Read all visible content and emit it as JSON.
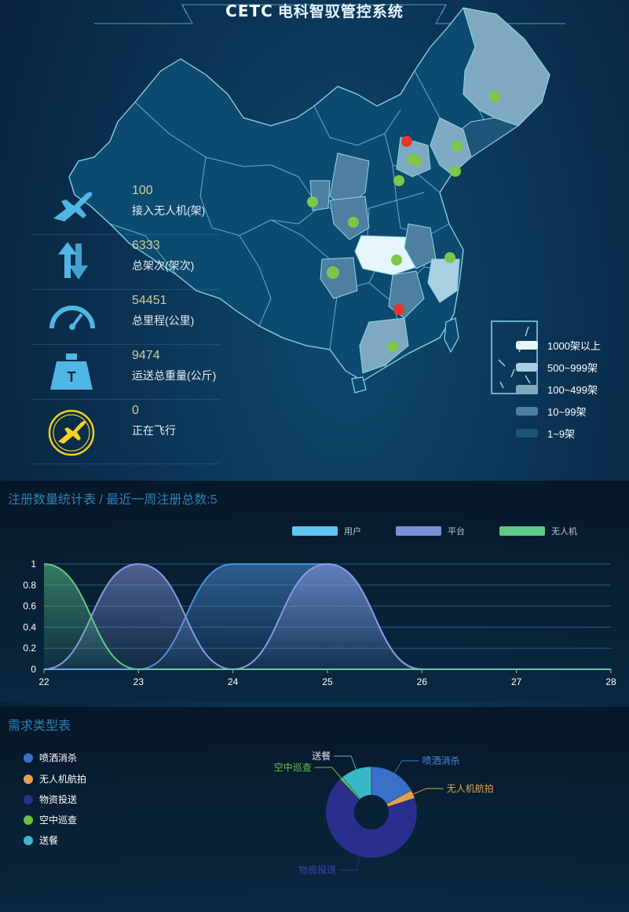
{
  "header": {
    "logo": "CETC",
    "title": "电科智驭管控系统"
  },
  "stats": [
    {
      "value": "100",
      "label": "接入无人机(架)",
      "icon": "drone-icon"
    },
    {
      "value": "6333",
      "label": "总架次(架次)",
      "icon": "transfer-arrows-icon"
    },
    {
      "value": "54451",
      "label": "总里程(公里)",
      "icon": "speedometer-icon"
    },
    {
      "value": "9474",
      "label": "运送总重量(公斤)",
      "icon": "weight-icon"
    },
    {
      "value": "0",
      "label": "正在飞行",
      "icon": "flying-drone-icon"
    }
  ],
  "map_legend": [
    {
      "label": "1000架以上",
      "color": "#e6f4fb"
    },
    {
      "label": "500~999架",
      "color": "#a9cfe0"
    },
    {
      "label": "100~499架",
      "color": "#7fa9c0"
    },
    {
      "label": "10~99架",
      "color": "#4e7fa0"
    },
    {
      "label": "1~9架",
      "color": "#1d5478"
    }
  ],
  "map_markers": {
    "green": "#7cc846",
    "red": "#e8352b"
  },
  "registration_panel": {
    "title": "注册数量统计表 / 最近一周注册总数:5",
    "legend": [
      {
        "label": "用户",
        "color": "#5fc7f0"
      },
      {
        "label": "平台",
        "color": "#7d8fd6"
      },
      {
        "label": "无人机",
        "color": "#5fc98a"
      }
    ]
  },
  "request_panel": {
    "title": "需求类型表",
    "legend": [
      {
        "label": "喷洒消杀",
        "color": "#3a70c8"
      },
      {
        "label": "无人机航拍",
        "color": "#e0a050"
      },
      {
        "label": "物资投送",
        "color": "#2a2f8e"
      },
      {
        "label": "空中巡查",
        "color": "#6ac04a"
      },
      {
        "label": "送餐",
        "color": "#3ab8c8"
      }
    ],
    "callouts": {
      "spray": "喷洒消杀",
      "aerial": "无人机航拍",
      "delivery": "物资投送",
      "patrol": "空中巡查",
      "meal": "送餐"
    }
  },
  "chart_data": [
    {
      "type": "area",
      "title": "注册数量统计表 / 最近一周注册总数:5",
      "x": [
        22,
        23,
        24,
        25,
        26,
        27,
        28
      ],
      "xlim": [
        22,
        28
      ],
      "ylim": [
        0,
        1
      ],
      "yticks": [
        0,
        0.2,
        0.4,
        0.6,
        0.8,
        1
      ],
      "series": [
        {
          "name": "用户",
          "values": [
            0,
            0,
            1,
            1,
            0,
            0,
            0
          ],
          "color": "#4a90d9"
        },
        {
          "name": "平台",
          "values": [
            0,
            1,
            0,
            1,
            0,
            0,
            0
          ],
          "color": "#8a9ae0"
        },
        {
          "name": "无人机",
          "values": [
            1,
            0,
            0,
            0,
            0,
            0,
            0
          ],
          "color": "#5fc98a"
        }
      ],
      "grid": true,
      "legend": "top-right"
    },
    {
      "type": "pie",
      "title": "需求类型表",
      "donut": true,
      "labels": [
        "喷洒消杀",
        "无人机航拍",
        "物资投送",
        "空中巡查",
        "送餐"
      ],
      "values": [
        17,
        3,
        68,
        1,
        11
      ],
      "colors": [
        "#3a70c8",
        "#e0a050",
        "#2a2f8e",
        "#6ac04a",
        "#3ab8c8"
      ],
      "legend": "left"
    }
  ]
}
